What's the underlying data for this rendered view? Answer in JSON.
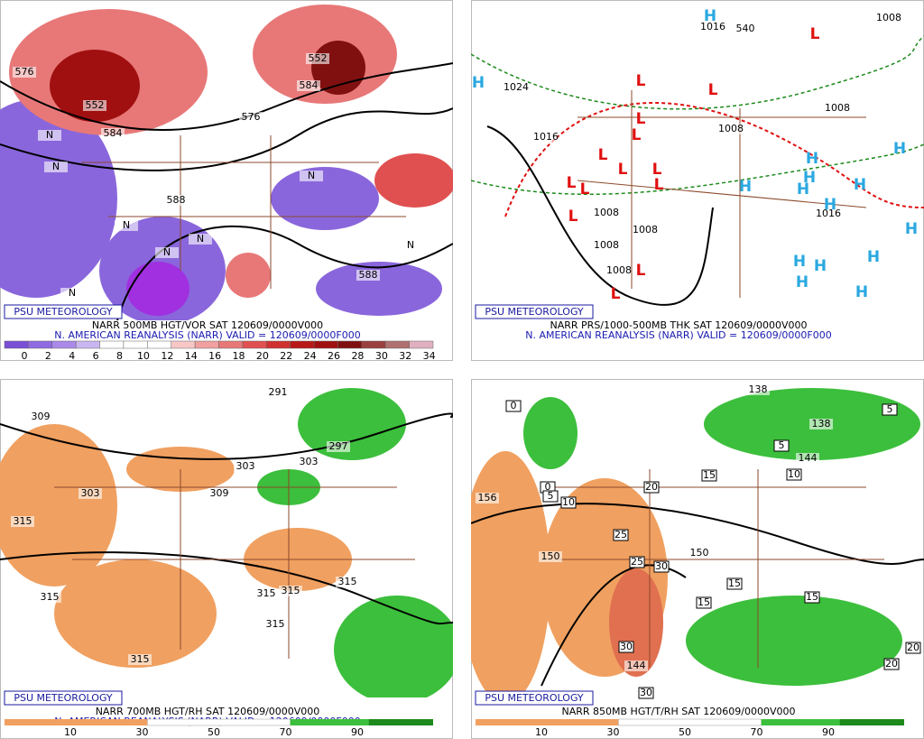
{
  "panels": [
    {
      "watermark": "PSU METEOROLOGY",
      "caption": "NARR 500MB HGT/VOR SAT 120609/0000V000",
      "valid": "N. AMERICAN REANALYSIS (NARR) VALID = 120609/0000F000",
      "colorbar": [
        0,
        2,
        4,
        6,
        8,
        10,
        12,
        14,
        16,
        18,
        20,
        22,
        24,
        26,
        28,
        30,
        32,
        34
      ],
      "labels": [
        "576",
        "552",
        "584",
        "552",
        "584",
        "576",
        "588",
        "588",
        "N",
        "N",
        "N",
        "N",
        "N",
        "N",
        "N",
        "N"
      ]
    },
    {
      "watermark": "PSU METEOROLOGY",
      "caption": "NARR PRS/1000-500MB THK SAT 120609/0000V000",
      "valid": "N. AMERICAN REANALYSIS (NARR) VALID = 120609/0000F000",
      "colorbar": [],
      "labels": [
        "1024",
        "1016",
        "1008",
        "1008",
        "1008",
        "1008",
        "1008",
        "1008",
        "1016",
        "1008",
        "540",
        "1016"
      ],
      "highs": [
        "H",
        "H",
        "H",
        "H",
        "H",
        "H",
        "H",
        "H",
        "H",
        "H",
        "H",
        "H",
        "H",
        "H",
        "H"
      ],
      "lows": [
        "L",
        "L",
        "L",
        "L",
        "L",
        "L",
        "L",
        "L",
        "L",
        "L",
        "L",
        "L",
        "L",
        "L"
      ]
    },
    {
      "watermark": "PSU METEOROLOGY",
      "caption": "NARR 700MB HGT/RH SAT 120609/0000V000",
      "valid": "N. AMERICAN REANALYSIS (NARR) VALID = 120609/0000F000",
      "colorbar": [
        10,
        30,
        50,
        70,
        90
      ],
      "labels": [
        "291",
        "309",
        "297",
        "303",
        "303",
        "303",
        "309",
        "315",
        "315",
        "315",
        "315",
        "315",
        "315",
        "315"
      ]
    },
    {
      "watermark": "PSU METEOROLOGY",
      "caption": "NARR 850MB HGT/T/RH SAT 120609/0000V000",
      "valid": "",
      "colorbar": [
        10,
        30,
        50,
        70,
        90
      ],
      "labels": [
        "138",
        "156",
        "150",
        "150",
        "144",
        "138",
        "144"
      ],
      "boxed": [
        "0",
        "5",
        "5",
        "15",
        "10",
        "0",
        "5",
        "10",
        "20",
        "25",
        "25",
        "30",
        "15",
        "15",
        "15",
        "30",
        "30",
        "20",
        "20"
      ]
    }
  ]
}
